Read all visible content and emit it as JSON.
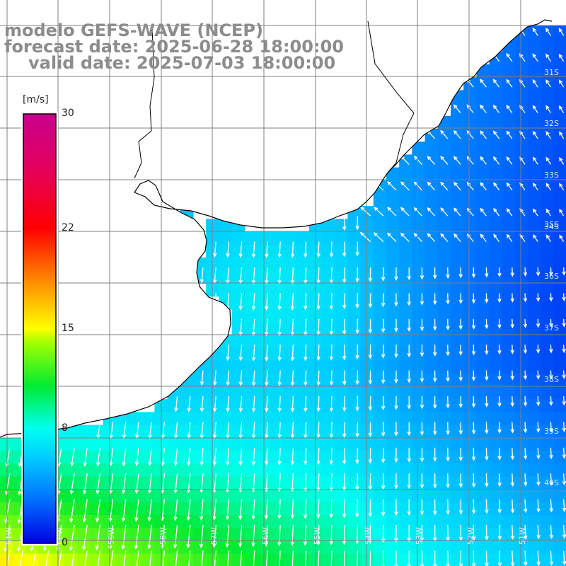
{
  "title": {
    "line1": "modelo GEFS-WAVE (NCEP)",
    "line2": "forecast date: 2025-06-28 18:00:00",
    "line3": "valid date: 2025-07-03 18:00:00"
  },
  "colorbar": {
    "unit": "[m/s]",
    "ticks": [
      {
        "label": "30",
        "value": 30
      },
      {
        "label": "22",
        "value": 22
      },
      {
        "label": "15",
        "value": 15
      },
      {
        "label": "8",
        "value": 8
      },
      {
        "label": "0",
        "value": 0
      }
    ],
    "min": 0,
    "max": 30
  },
  "map": {
    "lat_labels": [
      "35S",
      "36S",
      "37S",
      "38S",
      "39S",
      "40S"
    ],
    "lon_labels": [
      "61W",
      "60W",
      "59W",
      "58W",
      "57W",
      "56W",
      "55W",
      "54W",
      "53W",
      "52W",
      "51W"
    ],
    "hidden_lat_labels": [
      "31S",
      "32S",
      "33S",
      "34S"
    ],
    "field": "wind speed with wind direction arrows",
    "land_color": "#ffffff",
    "grid_color": "#808080",
    "arrow_color": "#ffffff"
  }
}
